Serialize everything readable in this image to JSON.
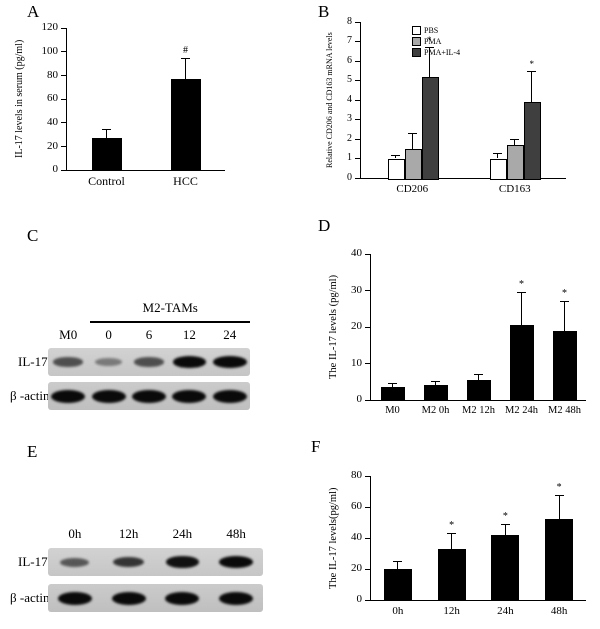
{
  "figure": {
    "panels": {
      "a": {
        "label": "A"
      },
      "b": {
        "label": "B"
      },
      "c": {
        "label": "C"
      },
      "d": {
        "label": "D"
      },
      "e": {
        "label": "E"
      },
      "f": {
        "label": "F"
      }
    }
  },
  "chart_data": [
    {
      "id": "A",
      "type": "bar",
      "categories": [
        "Control",
        "HCC"
      ],
      "values": [
        27,
        77
      ],
      "errors": [
        8,
        18
      ],
      "annotations": [
        "",
        "#"
      ],
      "title": "",
      "xlabel": "",
      "ylabel": "IL-17 levels in serum (pg/ml)",
      "ylim": [
        0,
        120
      ],
      "ytick_step": 20,
      "bar_color": "#000000",
      "grid": false
    },
    {
      "id": "B",
      "type": "bar",
      "categories": [
        "CD206",
        "CD163"
      ],
      "series": [
        {
          "name": "PBS",
          "color": "#ffffff",
          "values": [
            1.0,
            1.0
          ],
          "errors": [
            0.2,
            0.3
          ],
          "annotations": [
            "",
            ""
          ]
        },
        {
          "name": "PMA",
          "color": "#a9a9a9",
          "values": [
            1.5,
            1.7
          ],
          "errors": [
            0.8,
            0.3
          ],
          "annotations": [
            "",
            ""
          ]
        },
        {
          "name": "PMA+IL-4",
          "color": "#3f3f3f",
          "values": [
            5.2,
            3.9
          ],
          "errors": [
            1.5,
            1.6
          ],
          "annotations": [
            "*",
            "*"
          ]
        }
      ],
      "title": "",
      "xlabel": "",
      "ylabel": "Relative CD206 and CD163 mRNA levels",
      "ylim": [
        0,
        8
      ],
      "ytick_step": 1,
      "legend_position": "top-left-inside",
      "grid": false
    },
    {
      "id": "D",
      "type": "bar",
      "categories": [
        "M0",
        "M2 0h",
        "M2 12h",
        "M2 24h",
        "M2 48h"
      ],
      "values": [
        3.5,
        4.0,
        5.5,
        20.5,
        19.0
      ],
      "errors": [
        1.2,
        1.2,
        1.6,
        9.0,
        8.0
      ],
      "annotations": [
        "",
        "",
        "",
        "*",
        "*"
      ],
      "title": "",
      "xlabel": "",
      "ylabel": "The IL-17 levels (pg/ml)",
      "ylim": [
        0,
        40
      ],
      "ytick_step": 10,
      "bar_color": "#000000",
      "grid": false
    },
    {
      "id": "F",
      "type": "bar",
      "categories": [
        "0h",
        "12h",
        "24h",
        "48h"
      ],
      "values": [
        20,
        33,
        42,
        52
      ],
      "errors": [
        5,
        10,
        7,
        16
      ],
      "annotations": [
        "",
        "*",
        "*",
        "*"
      ],
      "title": "",
      "xlabel": "",
      "ylabel": "The IL-17 levels(pg/ml)",
      "ylim": [
        0,
        80
      ],
      "ytick_step": 20,
      "bar_color": "#000000",
      "grid": false
    }
  ],
  "blots": [
    {
      "id": "C",
      "group_label": "M2-TAMs",
      "group_span_from_lane": 1,
      "lanes": [
        "M0",
        "0",
        "6",
        "12",
        "24"
      ],
      "rows": [
        {
          "label": "IL-17",
          "band_intensities": [
            0.55,
            0.3,
            0.55,
            0.95,
            0.95
          ]
        },
        {
          "label": "β -actin",
          "band_intensities": [
            0.95,
            0.95,
            0.95,
            0.95,
            0.95
          ]
        }
      ]
    },
    {
      "id": "E",
      "group_label": "",
      "group_span_from_lane": 0,
      "lanes": [
        "0h",
        "12h",
        "24h",
        "48h"
      ],
      "rows": [
        {
          "label": "IL-17",
          "band_intensities": [
            0.5,
            0.7,
            0.9,
            0.95
          ]
        },
        {
          "label": "β -actin",
          "band_intensities": [
            0.95,
            0.95,
            0.95,
            0.95
          ]
        }
      ]
    }
  ],
  "colors": {
    "bar_black": "#000000",
    "bar_gray": "#a9a9a9",
    "bar_dark_gray": "#3f3f3f",
    "bar_white": "#ffffff",
    "blot_strip": "#cbcbcb"
  }
}
